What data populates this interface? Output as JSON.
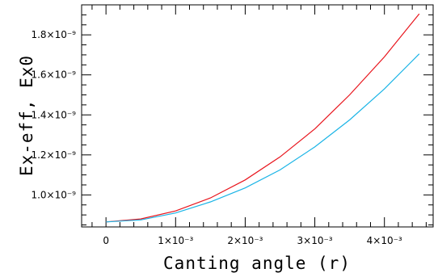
{
  "chart_data": {
    "type": "line",
    "xlabel": "Canting angle (r)",
    "ylabel": "Ex-eff, Ex0",
    "xlim": [
      -0.00035,
      0.0047
    ],
    "ylim": [
      8.4e-10,
      1.95e-09
    ],
    "x_ticks": [
      {
        "value": 0,
        "label": "0"
      },
      {
        "value": 0.001,
        "label": "1×10⁻³"
      },
      {
        "value": 0.002,
        "label": "2×10⁻³"
      },
      {
        "value": 0.003,
        "label": "3×10⁻³"
      },
      {
        "value": 0.004,
        "label": "4×10⁻³"
      }
    ],
    "y_ticks": [
      {
        "value": 1e-09,
        "label": "1.0×10⁻⁹"
      },
      {
        "value": 1.2e-09,
        "label": "1.2×10⁻⁹"
      },
      {
        "value": 1.4e-09,
        "label": "1.4×10⁻⁹"
      },
      {
        "value": 1.6e-09,
        "label": "1.6×10⁻⁹"
      },
      {
        "value": 1.8e-09,
        "label": "1.8×10⁻⁹"
      }
    ],
    "grid": false,
    "series": [
      {
        "color": "#e8141c",
        "x": [
          0,
          0.0005,
          0.001,
          0.0015,
          0.002,
          0.0025,
          0.003,
          0.0035,
          0.004,
          0.0045
        ],
        "y": [
          8.65e-10,
          8.8e-10,
          9.2e-10,
          9.85e-10,
          1.075e-09,
          1.19e-09,
          1.33e-09,
          1.5e-09,
          1.69e-09,
          1.905e-09
        ]
      },
      {
        "color": "#1ab4e6",
        "x": [
          0,
          0.0005,
          0.001,
          0.0015,
          0.002,
          0.0025,
          0.003,
          0.0035,
          0.004,
          0.0045
        ],
        "y": [
          8.65e-10,
          8.75e-10,
          9.1e-10,
          9.65e-10,
          1.035e-09,
          1.125e-09,
          1.24e-09,
          1.375e-09,
          1.53e-09,
          1.705e-09
        ]
      }
    ]
  }
}
